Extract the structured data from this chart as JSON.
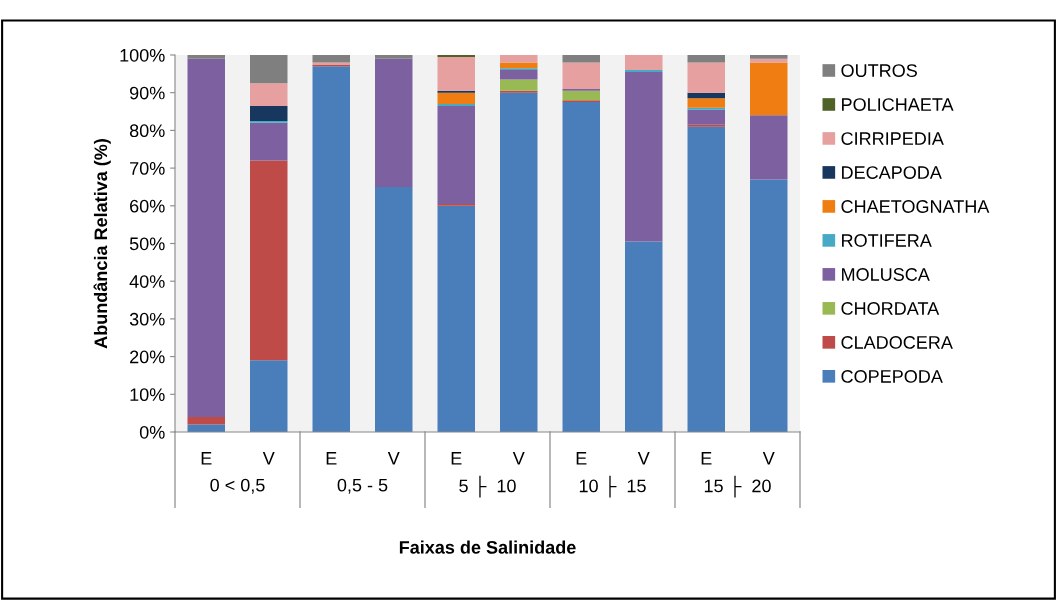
{
  "chart_data": {
    "type": "bar",
    "stacked": true,
    "ylabel": "Abundância Relativa (%)",
    "xlabel": "Faixas de Salinidade",
    "categories": [
      "E",
      "V",
      "E",
      "V",
      "E",
      "V",
      "E",
      "V",
      "E",
      "V"
    ],
    "annotations": [
      "0 < 0,5",
      "0,5 - 5",
      "5 ├  10",
      "10 ├  15",
      "15 ├  20"
    ],
    "ylim": [
      0,
      100
    ],
    "yticks": [
      {
        "value": 0,
        "label": "0%"
      },
      {
        "value": 10,
        "label": "10%"
      },
      {
        "value": 20,
        "label": "20%"
      },
      {
        "value": 30,
        "label": "30%"
      },
      {
        "value": 40,
        "label": "40%"
      },
      {
        "value": 50,
        "label": "50%"
      },
      {
        "value": 60,
        "label": "60%"
      },
      {
        "value": 70,
        "label": "70%"
      },
      {
        "value": 80,
        "label": "80%"
      },
      {
        "value": 90,
        "label": "90%"
      },
      {
        "value": 100,
        "label": "100%"
      }
    ],
    "legend": "right",
    "grid": false,
    "series": [
      {
        "name": "COPEPODA",
        "color": "#4a7ebb",
        "values": [
          2,
          19,
          97,
          65,
          60,
          90,
          87.5,
          50.5,
          81,
          67
        ]
      },
      {
        "name": "CLADOCERA",
        "color": "#be4b48",
        "values": [
          2,
          53,
          0.5,
          0,
          0.5,
          0.5,
          0.5,
          0,
          0.5,
          0
        ]
      },
      {
        "name": "CHORDATA",
        "color": "#98b954",
        "values": [
          0,
          0,
          0,
          0,
          0,
          3,
          2.5,
          0,
          0,
          0
        ]
      },
      {
        "name": "MOLUSCA",
        "color": "#7d60a0",
        "values": [
          95,
          10,
          0,
          34,
          26,
          2.5,
          0.5,
          45,
          4,
          17
        ]
      },
      {
        "name": "ROTIFERA",
        "color": "#46aac5",
        "values": [
          0,
          0.5,
          0,
          0,
          0.5,
          0.5,
          0,
          0.5,
          0.5,
          0
        ]
      },
      {
        "name": "CHAETOGNATHA",
        "color": "#ef7d11",
        "values": [
          0,
          0,
          0,
          0,
          3,
          1.5,
          0,
          0,
          2.5,
          14
        ]
      },
      {
        "name": "DECAPODA",
        "color": "#17375e",
        "values": [
          0,
          4,
          0,
          0,
          0.5,
          0,
          0,
          0,
          1.5,
          0
        ]
      },
      {
        "name": "CIRRIPEDIA",
        "color": "#e6a0a0",
        "values": [
          0,
          6,
          0.5,
          0,
          9,
          2,
          7,
          4,
          8,
          1
        ]
      },
      {
        "name": "POLICHAETA",
        "color": "#4f6228",
        "values": [
          0,
          0,
          0,
          0,
          0.5,
          0,
          0,
          0,
          0,
          0
        ]
      },
      {
        "name": "OUTROS",
        "color": "#7f7f7f",
        "values": [
          1,
          7.5,
          2,
          1,
          0,
          0,
          2,
          0,
          2,
          1
        ]
      }
    ]
  }
}
